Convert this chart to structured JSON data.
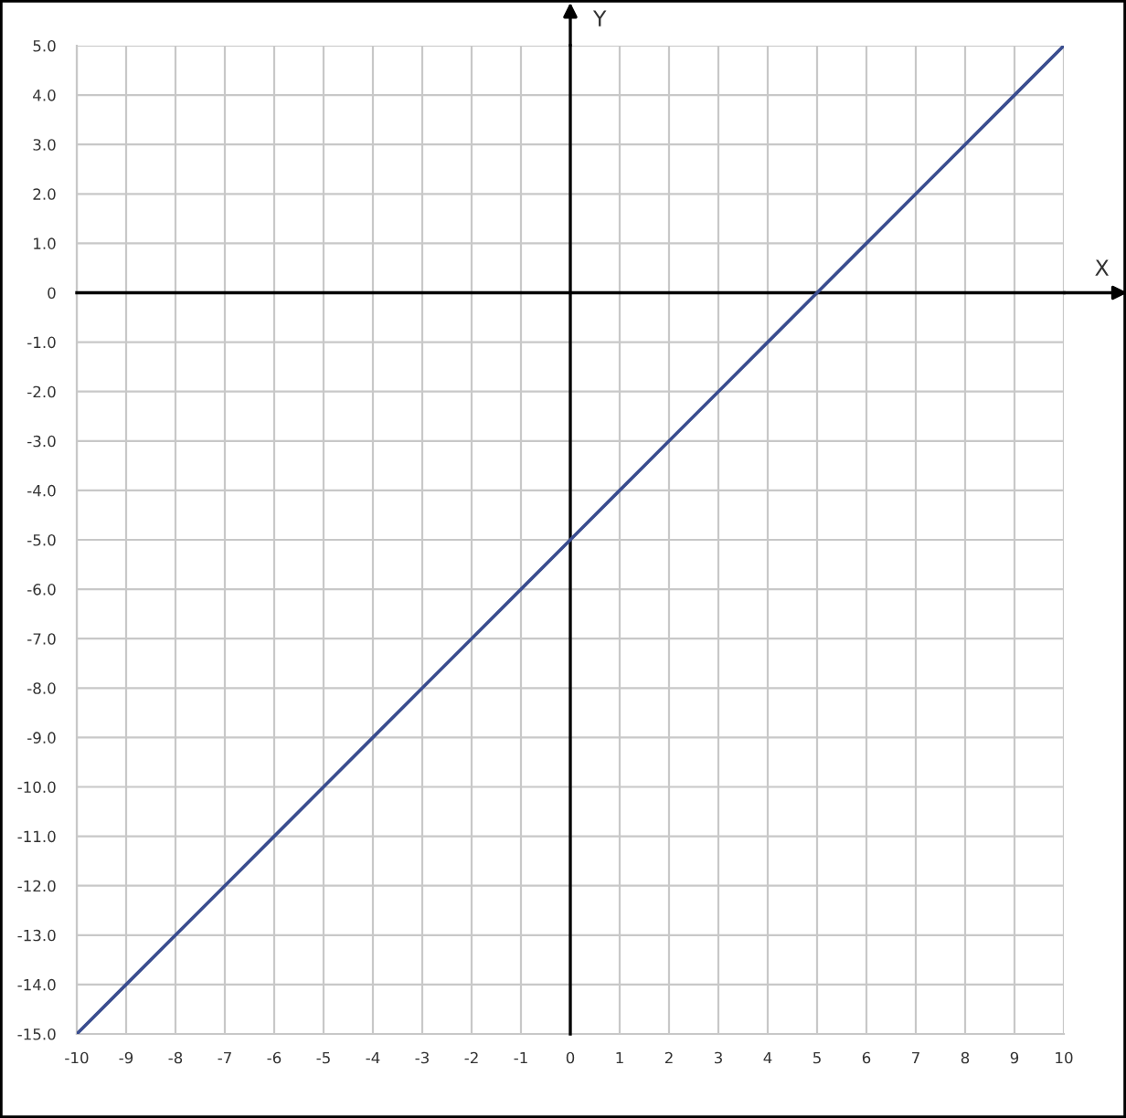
{
  "chart_data": {
    "type": "line",
    "xlabel": "X",
    "ylabel": "Y",
    "x": [
      -10,
      -9,
      -8,
      -7,
      -6,
      -5,
      -4,
      -3,
      -2,
      -1,
      0,
      1,
      2,
      3,
      4,
      5,
      6,
      7,
      8,
      9,
      10
    ],
    "series": [
      {
        "color": "#3a4d8f",
        "values": [
          -15,
          -14,
          -13,
          -12,
          -11,
          -10,
          -9,
          -8,
          -7,
          -6,
          -5,
          -4,
          -3,
          -2,
          -1,
          0,
          1,
          2,
          3,
          4,
          5
        ]
      }
    ],
    "line_style": "solid",
    "xlim": [
      -10,
      10
    ],
    "ylim": [
      -15,
      5
    ],
    "xticks": [
      -10,
      -9,
      -8,
      -7,
      -6,
      -5,
      -4,
      -3,
      -2,
      -1,
      0,
      1,
      2,
      3,
      4,
      5,
      6,
      7,
      8,
      9,
      10
    ],
    "yticks": [
      {
        "value": 5,
        "label": "5.0"
      },
      {
        "value": 4,
        "label": "4.0"
      },
      {
        "value": 3,
        "label": "3.0"
      },
      {
        "value": 2,
        "label": "2.0"
      },
      {
        "value": 1,
        "label": "1.0"
      },
      0,
      {
        "value": -1,
        "label": "-1.0"
      },
      {
        "value": -2,
        "label": "-2.0"
      },
      {
        "value": -3,
        "label": "-3.0"
      },
      {
        "value": -4,
        "label": "-4.0"
      },
      {
        "value": -5,
        "label": "-5.0"
      },
      {
        "value": -6,
        "label": "-6.0"
      },
      {
        "value": -7,
        "label": "-7.0"
      },
      {
        "value": -8,
        "label": "-8.0"
      },
      {
        "value": -9,
        "label": "-9.0"
      },
      {
        "value": -10,
        "label": "-10.0"
      },
      {
        "value": -11,
        "label": "-11.0"
      },
      {
        "value": -12,
        "label": "-12.0"
      },
      {
        "value": -13,
        "label": "-13.0"
      },
      {
        "value": -14,
        "label": "-14.0"
      },
      {
        "value": -15,
        "label": "-15.0"
      }
    ],
    "grid": true
  }
}
